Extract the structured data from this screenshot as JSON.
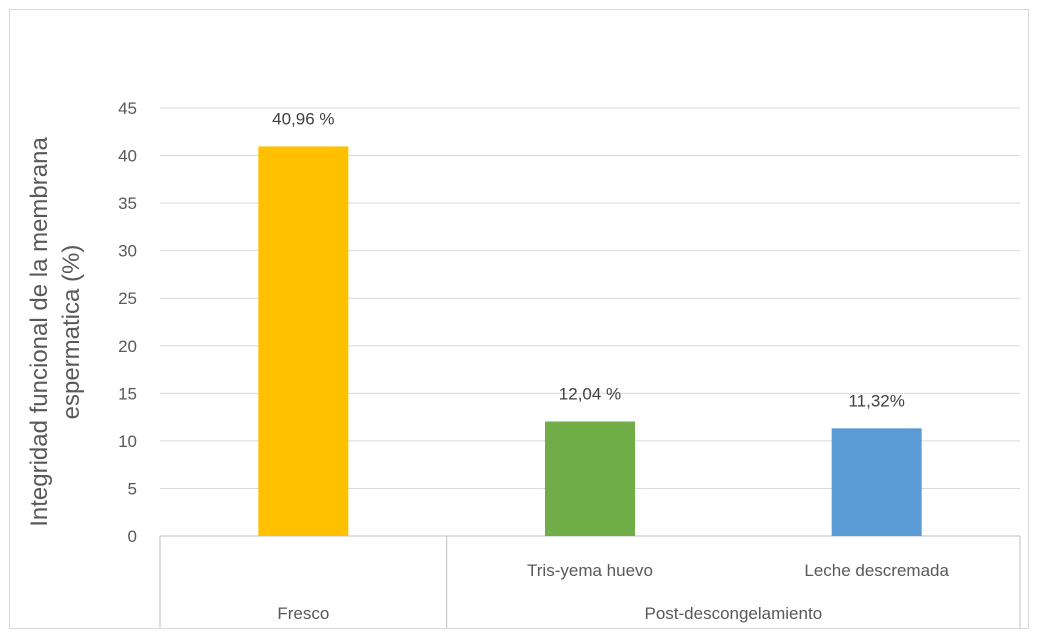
{
  "chart_data": {
    "type": "bar",
    "ylabel_lines": [
      "Integridad funcional de la membrana",
      "espermatica (%)"
    ],
    "ylim": [
      0,
      45
    ],
    "ytick_step": 5,
    "grid": true,
    "categories": [
      "",
      "Tris-yema huevo",
      "Leche descremada"
    ],
    "groups": [
      {
        "label": "Fresco",
        "span": 1
      },
      {
        "label": "Post-descongelamiento",
        "span": 2
      }
    ],
    "values": [
      40.96,
      12.04,
      11.32
    ],
    "data_labels": [
      "40,96 %",
      "12,04 %",
      "11,32%"
    ],
    "bar_colors": [
      "#ffc000",
      "#70ad47",
      "#5b9bd5"
    ]
  }
}
